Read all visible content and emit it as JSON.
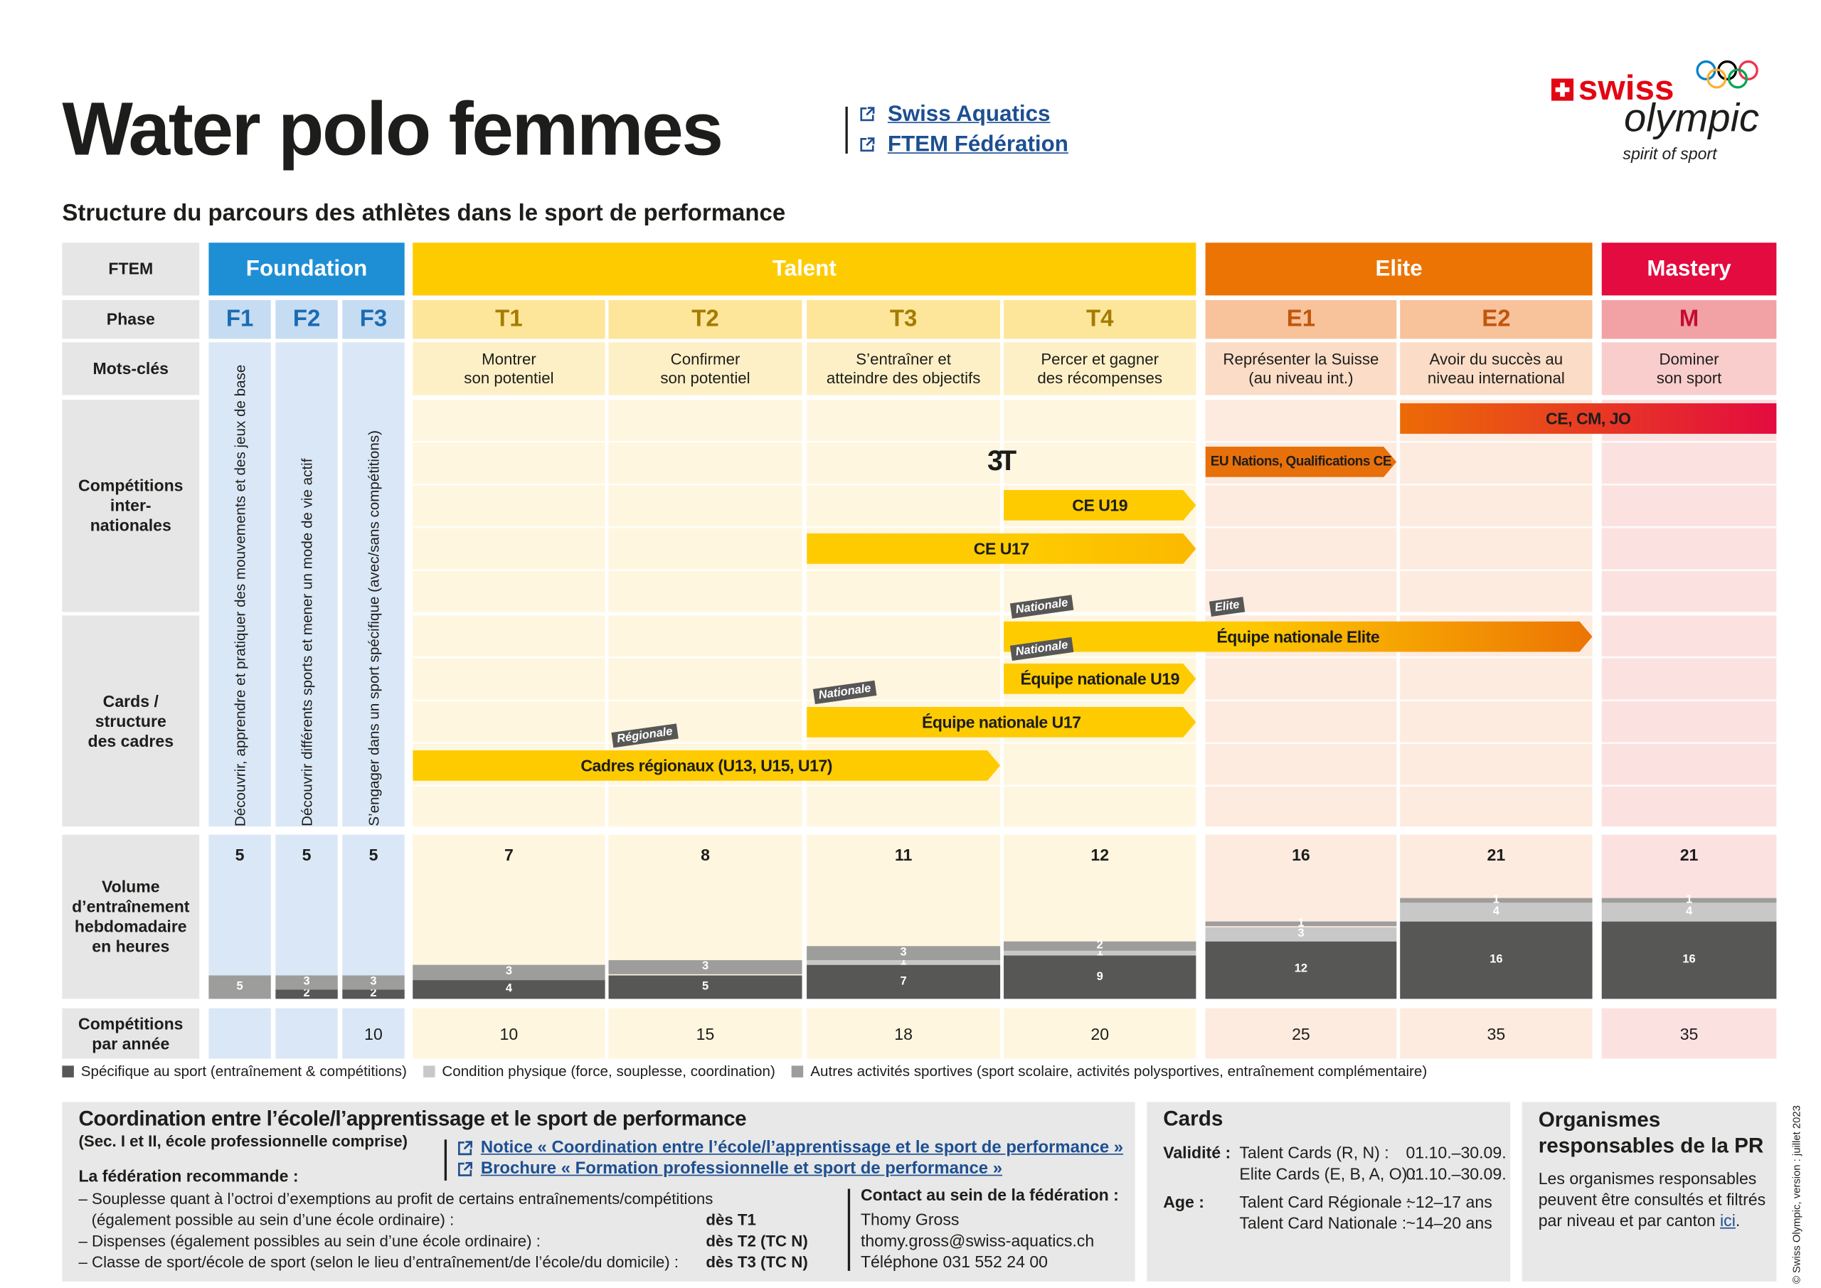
{
  "header": {
    "title": "Water polo femmes",
    "links": [
      "Swiss Aquatics",
      "FTEM Fédération"
    ],
    "logo": {
      "brand": "swiss",
      "name": "olympic",
      "tagline": "spirit of sport"
    }
  },
  "subtitle": "Structure du parcours des athlètes dans le sport de performance",
  "row_labels": [
    "FTEM",
    "Phase",
    "Mots-clés",
    "Compétitions\ninter-\nnationales",
    "Cards /\nstructure\ndes cadres",
    "Volume\nd’entraînement\nhebdomadaire\nen heures",
    "Compétitions\npar année"
  ],
  "groups": [
    {
      "label": "Foundation",
      "header_color": "#1e8fd5",
      "phase_color": "#c6dcf2",
      "keyword_color": "#dae7f6",
      "body_color": "#dae7f6",
      "code_color": "#1a6bb3",
      "phases": [
        {
          "code": "F1",
          "keywords": "Découvrir, apprendre et pratiquer des mouvements et des jeux de base",
          "volume": {
            "total": 5,
            "segments": {
              "other": 5
            }
          }
        },
        {
          "code": "F2",
          "keywords": "Découvrir différents sports et mener un mode de vie actif",
          "volume": {
            "total": 5,
            "segments": {
              "specific": 2,
              "other": 3
            }
          }
        },
        {
          "code": "F3",
          "keywords": "S’engager dans un sport spécifique (avec/sans compétitions)",
          "volume": {
            "total": 5,
            "segments": {
              "specific": 2,
              "other": 3
            }
          },
          "competitions": 10
        }
      ]
    },
    {
      "label": "Talent",
      "header_color": "#fecb00",
      "phase_color": "#fde69a",
      "keyword_color": "#fef0c6",
      "body_color": "#fef6df",
      "code_color": "#a57c00",
      "phases": [
        {
          "code": "T1",
          "keywords": "Montrer\nson potentiel",
          "volume": {
            "total": 7,
            "segments": {
              "specific": 4,
              "other": 3
            }
          },
          "competitions": 10
        },
        {
          "code": "T2",
          "keywords": "Confirmer\nson potentiel",
          "volume": {
            "total": 8,
            "segments": {
              "specific": 5,
              "other": 3
            }
          },
          "competitions": 15
        },
        {
          "code": "T3",
          "keywords": "S’entraîner et\natteindre des objectifs",
          "volume": {
            "total": 11,
            "segments": {
              "specific": 7,
              "condition": 1,
              "other": 3
            }
          },
          "competitions": 18
        },
        {
          "code": "T4",
          "keywords": "Percer et gagner\ndes récompenses",
          "volume": {
            "total": 12,
            "segments": {
              "specific": 9,
              "condition": 1,
              "other": 2
            }
          },
          "competitions": 20
        }
      ]
    },
    {
      "label": "Elite",
      "header_color": "#ec7404",
      "phase_color": "#f8c29b",
      "keyword_color": "#fbdcc6",
      "body_color": "#fdebdf",
      "code_color": "#c1560a",
      "phases": [
        {
          "code": "E1",
          "keywords": "Représenter la Suisse\n(au niveau int.)",
          "volume": {
            "total": 16,
            "segments": {
              "specific": 12,
              "condition": 3,
              "other": 1
            }
          },
          "competitions": 25
        },
        {
          "code": "E2",
          "keywords": "Avoir du succès au\nniveau international",
          "volume": {
            "total": 21,
            "segments": {
              "specific": 16,
              "condition": 4,
              "other": 1
            }
          },
          "competitions": 35
        }
      ]
    },
    {
      "label": "Mastery",
      "header_color": "#e30b3f",
      "phase_color": "#f2a1a4",
      "keyword_color": "#f8cdcc",
      "body_color": "#fbe2e1",
      "code_color": "#c20d30",
      "phases": [
        {
          "code": "M",
          "keywords": "Dominer\nson sport",
          "volume": {
            "total": 21,
            "segments": {
              "specific": 16,
              "condition": 4,
              "other": 1
            }
          },
          "competitions": 35
        }
      ]
    }
  ],
  "international": {
    "logo": "3T",
    "bars": [
      {
        "label": "CE, CM, JO"
      },
      {
        "label": "EU Nations, Qualifications CE"
      },
      {
        "label": "CE U19"
      },
      {
        "label": "CE U17"
      }
    ]
  },
  "cards": {
    "bars": [
      {
        "label": "Équipe nationale Elite",
        "tags": [
          "Nationale",
          "Elite"
        ]
      },
      {
        "label": "Équipe nationale U19",
        "tags": [
          "Nationale"
        ]
      },
      {
        "label": "Équipe nationale U17",
        "tags": [
          "Nationale"
        ]
      },
      {
        "label": "Cadres régionaux (U13, U15, U17)",
        "tags": [
          "Régionale"
        ]
      }
    ]
  },
  "legend": [
    {
      "name": "Spécifique au sport (entraînement & compétitions)",
      "color": "#575756"
    },
    {
      "name": "Condition physique (force, souplesse, coordination)",
      "color": "#c8c8c8"
    },
    {
      "name": "Autres activités sportives (sport scolaire, activités polysportives, entraînement complémentaire)",
      "color": "#9d9d9c"
    }
  ],
  "coordination": {
    "title": "Coordination entre l’école/l’apprentissage et le sport de performance",
    "subtitle": "(Sec. I et II, école professionnelle comprise)",
    "links": [
      "Notice « Coordination entre l’école/l’apprentissage et le sport de performance »",
      "Brochure « Formation professionnelle et sport de performance »"
    ],
    "heading": "La fédération recommande :",
    "items": [
      {
        "lines": [
          "– Souplesse quant à l’octroi d’exemptions au profit de certains entraînements/compétitions",
          "(également possible au sein d’une école ordinaire) :"
        ],
        "value": "dès T1"
      },
      {
        "lines": [
          "– Dispenses (également possibles au sein d’une école ordinaire) :"
        ],
        "value": "dès T2 (TC N)"
      },
      {
        "lines": [
          "– Classe de sport/école de sport (selon le lieu d’entraînement/de l’école/du domicile) :"
        ],
        "value": "dès T3 (TC N)"
      }
    ],
    "contact": {
      "heading": "Contact au sein de la fédération :",
      "lines": [
        "Thomy Gross",
        "thomy.gross@swiss-aquatics.ch",
        "Téléphone 031 552 24 00"
      ]
    }
  },
  "cards_panel": {
    "title": "Cards",
    "sections": [
      {
        "label": "Validité :",
        "rows": [
          [
            "Talent Cards (R, N) :",
            "01.10.–30.09."
          ],
          [
            "Elite Cards (E, B, A, O) :",
            "01.10.–30.09."
          ]
        ]
      },
      {
        "label": "Age :",
        "rows": [
          [
            "Talent Card Régionale :",
            "~12–17 ans"
          ],
          [
            "Talent Card Nationale :",
            "~14–20 ans"
          ]
        ]
      }
    ]
  },
  "organisms": {
    "title": "Organismes\nresponsables de la PR",
    "text": "Les organismes responsables peuvent être consultés et filtrés par niveau et par canton ",
    "link": "ici",
    "text_end": "."
  },
  "copyright": "© Swiss Olympic, version : juillet 2023"
}
